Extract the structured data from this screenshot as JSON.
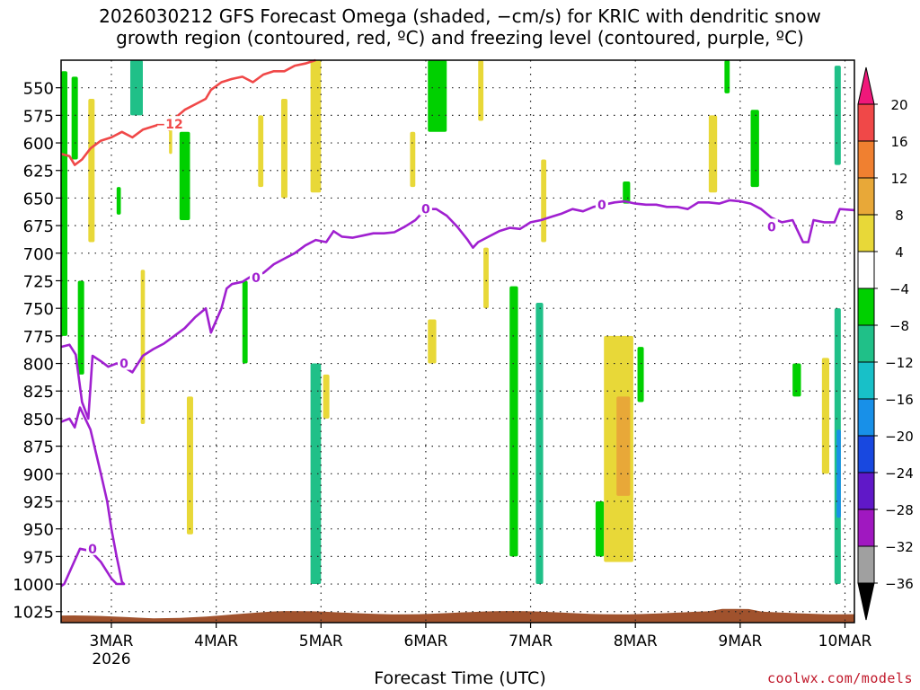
{
  "chart_data": {
    "type": "heatmap",
    "title_line1": "2026030212 GFS Forecast Omega (shaded, −cm/s) for KRIC with dendritic snow",
    "title_line2": "growth region (contoured, red, ºC) and freezing level (contoured, purple, ºC)",
    "xlabel": "Forecast Time (UTC)",
    "credit": "coolwx.com/models",
    "x_ticks": [
      {
        "label": "3MAR",
        "sublabel": "2026",
        "day": 3
      },
      {
        "label": "4MAR",
        "day": 4
      },
      {
        "label": "5MAR",
        "day": 5
      },
      {
        "label": "6MAR",
        "day": 6
      },
      {
        "label": "7MAR",
        "day": 7
      },
      {
        "label": "8MAR",
        "day": 8
      },
      {
        "label": "9MAR",
        "day": 9
      },
      {
        "label": "10MAR",
        "day": 10
      }
    ],
    "xlim": [
      2.52,
      10.09
    ],
    "y_ticks": [
      550,
      575,
      600,
      625,
      650,
      675,
      700,
      725,
      750,
      775,
      800,
      825,
      850,
      875,
      900,
      925,
      950,
      975,
      1000,
      1025
    ],
    "ylim": [
      525,
      1035
    ],
    "colorbar": {
      "labels": [
        "20",
        "16",
        "12",
        "8",
        "4",
        "−4",
        "−8",
        "−12",
        "−16",
        "−20",
        "−24",
        "−28",
        "−32",
        "−36"
      ],
      "colors": [
        "#f0187a",
        "#f04848",
        "#f08030",
        "#e8a838",
        "#e8d838",
        "#ffffff",
        "#00d000",
        "#20c088",
        "#18c0c8",
        "#1890e8",
        "#1848e0",
        "#6018c8",
        "#a018c0",
        "#a0a0a0",
        "#000000"
      ]
    },
    "freezing_level": {
      "color": "#a020d0",
      "label": "0",
      "points": [
        [
          2.52,
          785
        ],
        [
          2.6,
          783
        ],
        [
          2.66,
          792
        ],
        [
          2.72,
          835
        ],
        [
          2.78,
          850
        ],
        [
          2.82,
          793
        ],
        [
          2.9,
          798
        ],
        [
          2.97,
          803
        ],
        [
          3.05,
          800
        ],
        [
          3.1,
          802
        ],
        [
          3.2,
          808
        ],
        [
          3.3,
          793
        ],
        [
          3.4,
          787
        ],
        [
          3.5,
          782
        ],
        [
          3.6,
          775
        ],
        [
          3.7,
          768
        ],
        [
          3.8,
          758
        ],
        [
          3.9,
          750
        ],
        [
          3.95,
          772
        ],
        [
          4.05,
          750
        ],
        [
          4.1,
          732
        ],
        [
          4.15,
          728
        ],
        [
          4.25,
          726
        ],
        [
          4.35,
          720
        ],
        [
          4.45,
          718
        ],
        [
          4.55,
          710
        ],
        [
          4.65,
          705
        ],
        [
          4.75,
          700
        ],
        [
          4.85,
          693
        ],
        [
          4.95,
          688
        ],
        [
          5.05,
          690
        ],
        [
          5.12,
          680
        ],
        [
          5.2,
          685
        ],
        [
          5.3,
          686
        ],
        [
          5.4,
          684
        ],
        [
          5.5,
          682
        ],
        [
          5.6,
          682
        ],
        [
          5.7,
          681
        ],
        [
          5.8,
          676
        ],
        [
          5.9,
          670
        ],
        [
          6.0,
          660
        ],
        [
          6.1,
          660
        ],
        [
          6.2,
          666
        ],
        [
          6.3,
          676
        ],
        [
          6.4,
          688
        ],
        [
          6.45,
          695
        ],
        [
          6.5,
          690
        ],
        [
          6.6,
          685
        ],
        [
          6.7,
          680
        ],
        [
          6.8,
          677
        ],
        [
          6.9,
          678
        ],
        [
          7.0,
          672
        ],
        [
          7.1,
          670
        ],
        [
          7.2,
          667
        ],
        [
          7.3,
          664
        ],
        [
          7.4,
          660
        ],
        [
          7.5,
          662
        ],
        [
          7.6,
          658
        ],
        [
          7.7,
          656
        ],
        [
          7.8,
          654
        ],
        [
          7.9,
          653
        ],
        [
          8.0,
          655
        ],
        [
          8.1,
          656
        ],
        [
          8.2,
          656
        ],
        [
          8.3,
          658
        ],
        [
          8.4,
          658
        ],
        [
          8.5,
          660
        ],
        [
          8.6,
          654
        ],
        [
          8.7,
          654
        ],
        [
          8.8,
          655
        ],
        [
          8.9,
          652
        ],
        [
          9.0,
          653
        ],
        [
          9.1,
          655
        ],
        [
          9.2,
          660
        ],
        [
          9.3,
          668
        ],
        [
          9.4,
          672
        ],
        [
          9.5,
          670
        ],
        [
          9.6,
          690
        ],
        [
          9.65,
          690
        ],
        [
          9.7,
          670
        ],
        [
          9.8,
          672
        ],
        [
          9.9,
          672
        ],
        [
          9.95,
          660
        ],
        [
          10.09,
          661
        ]
      ]
    },
    "freezing_level_lower": {
      "color": "#a020d0",
      "label": "0",
      "points": [
        [
          2.52,
          853
        ],
        [
          2.6,
          850
        ],
        [
          2.65,
          858
        ],
        [
          2.7,
          840
        ],
        [
          2.8,
          860
        ],
        [
          2.9,
          900
        ],
        [
          2.96,
          925
        ],
        [
          3.0,
          950
        ],
        [
          3.05,
          975
        ],
        [
          3.1,
          998
        ],
        [
          3.12,
          1000
        ],
        [
          3.05,
          1000
        ],
        [
          3.0,
          995
        ],
        [
          2.9,
          980
        ],
        [
          2.8,
          970
        ],
        [
          2.7,
          968
        ],
        [
          2.62,
          985
        ],
        [
          2.55,
          1000
        ],
        [
          2.52,
          1002
        ]
      ]
    },
    "dendritic_region": {
      "color": "#f04848",
      "label": "−12",
      "points": [
        [
          2.52,
          610
        ],
        [
          2.6,
          612
        ],
        [
          2.65,
          620
        ],
        [
          2.72,
          615
        ],
        [
          2.8,
          605
        ],
        [
          2.9,
          598
        ],
        [
          3.0,
          595
        ],
        [
          3.1,
          590
        ],
        [
          3.2,
          595
        ],
        [
          3.3,
          588
        ],
        [
          3.4,
          585
        ],
        [
          3.5,
          582
        ],
        [
          3.55,
          588
        ],
        [
          3.6,
          578
        ],
        [
          3.7,
          570
        ],
        [
          3.8,
          565
        ],
        [
          3.9,
          560
        ],
        [
          3.95,
          552
        ],
        [
          4.05,
          545
        ],
        [
          4.15,
          542
        ],
        [
          4.25,
          540
        ],
        [
          4.35,
          545
        ],
        [
          4.45,
          538
        ],
        [
          4.55,
          535
        ],
        [
          4.65,
          535
        ],
        [
          4.75,
          530
        ],
        [
          4.85,
          528
        ],
        [
          4.95,
          525
        ]
      ]
    },
    "omega_patches": [
      {
        "x0": 2.52,
        "x1": 2.58,
        "p0": 535,
        "p1": 775,
        "value": -6
      },
      {
        "x0": 2.62,
        "x1": 2.68,
        "p0": 540,
        "p1": 615,
        "value": -6
      },
      {
        "x0": 2.68,
        "x1": 2.74,
        "p0": 725,
        "p1": 810,
        "value": -6
      },
      {
        "x0": 2.78,
        "x1": 2.84,
        "p0": 560,
        "p1": 690,
        "value": 5
      },
      {
        "x0": 3.05,
        "x1": 3.09,
        "p0": 640,
        "p1": 665,
        "value": -6
      },
      {
        "x0": 3.18,
        "x1": 3.3,
        "p0": 525,
        "p1": 575,
        "value": -10
      },
      {
        "x0": 3.28,
        "x1": 3.32,
        "p0": 715,
        "p1": 855,
        "value": 6
      },
      {
        "x0": 3.55,
        "x1": 3.58,
        "p0": 575,
        "p1": 610,
        "value": 6
      },
      {
        "x0": 3.65,
        "x1": 3.75,
        "p0": 590,
        "p1": 670,
        "value": -6
      },
      {
        "x0": 3.72,
        "x1": 3.78,
        "p0": 830,
        "p1": 955,
        "value": 6
      },
      {
        "x0": 4.25,
        "x1": 4.3,
        "p0": 725,
        "p1": 800,
        "value": -6
      },
      {
        "x0": 4.4,
        "x1": 4.45,
        "p0": 575,
        "p1": 640,
        "value": 5
      },
      {
        "x0": 4.62,
        "x1": 4.68,
        "p0": 560,
        "p1": 650,
        "value": 5
      },
      {
        "x0": 4.9,
        "x1": 5.0,
        "p0": 525,
        "p1": 645,
        "value": 6
      },
      {
        "x0": 4.9,
        "x1": 5.0,
        "p0": 800,
        "p1": 1000,
        "value": -9
      },
      {
        "x0": 5.02,
        "x1": 5.08,
        "p0": 810,
        "p1": 850,
        "value": 5
      },
      {
        "x0": 5.85,
        "x1": 5.9,
        "p0": 590,
        "p1": 640,
        "value": 5
      },
      {
        "x0": 6.02,
        "x1": 6.2,
        "p0": 525,
        "p1": 590,
        "value": -6
      },
      {
        "x0": 6.02,
        "x1": 6.1,
        "p0": 760,
        "p1": 800,
        "value": 5
      },
      {
        "x0": 6.5,
        "x1": 6.55,
        "p0": 525,
        "p1": 580,
        "value": 5
      },
      {
        "x0": 6.55,
        "x1": 6.6,
        "p0": 695,
        "p1": 750,
        "value": 5
      },
      {
        "x0": 6.8,
        "x1": 6.88,
        "p0": 730,
        "p1": 975,
        "value": -6
      },
      {
        "x0": 7.05,
        "x1": 7.12,
        "p0": 745,
        "p1": 1000,
        "value": -9
      },
      {
        "x0": 7.1,
        "x1": 7.15,
        "p0": 615,
        "p1": 690,
        "value": 5
      },
      {
        "x0": 7.62,
        "x1": 7.7,
        "p0": 925,
        "p1": 975,
        "value": -6
      },
      {
        "x0": 7.7,
        "x1": 7.98,
        "p0": 775,
        "p1": 980,
        "value": 6
      },
      {
        "x0": 7.82,
        "x1": 7.95,
        "p0": 830,
        "p1": 920,
        "value": 10
      },
      {
        "x0": 7.88,
        "x1": 7.95,
        "p0": 635,
        "p1": 655,
        "value": -6
      },
      {
        "x0": 8.02,
        "x1": 8.08,
        "p0": 785,
        "p1": 835,
        "value": -6
      },
      {
        "x0": 8.7,
        "x1": 8.78,
        "p0": 575,
        "p1": 645,
        "value": 6
      },
      {
        "x0": 8.85,
        "x1": 8.9,
        "p0": 525,
        "p1": 555,
        "value": -6
      },
      {
        "x0": 9.1,
        "x1": 9.18,
        "p0": 570,
        "p1": 640,
        "value": -6
      },
      {
        "x0": 9.5,
        "x1": 9.58,
        "p0": 800,
        "p1": 830,
        "value": -6
      },
      {
        "x0": 9.78,
        "x1": 9.85,
        "p0": 795,
        "p1": 900,
        "value": 6
      },
      {
        "x0": 9.9,
        "x1": 9.96,
        "p0": 530,
        "p1": 620,
        "value": -9
      },
      {
        "x0": 9.9,
        "x1": 9.96,
        "p0": 750,
        "p1": 1000,
        "value": -10
      },
      {
        "x0": 9.92,
        "x1": 9.96,
        "p0": 860,
        "p1": 940,
        "value": -18
      }
    ],
    "terrain_color": "#a0522d"
  }
}
